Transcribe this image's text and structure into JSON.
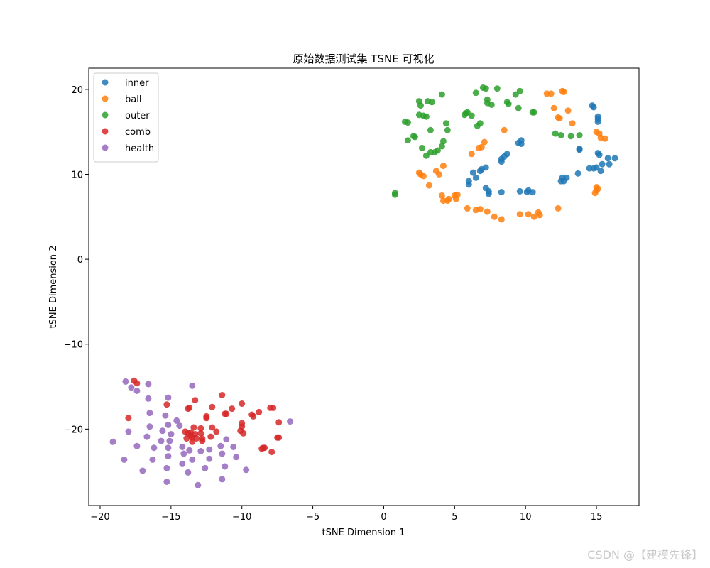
{
  "watermark": "CSDN @【建模先锋】",
  "chart_data": {
    "type": "scatter",
    "title": "原始数据测试集 TSNE 可视化",
    "xlabel": "tSNE Dimension 1",
    "ylabel": "tSNE Dimension 2",
    "xlim": [
      -20.8,
      18.0
    ],
    "ylim": [
      -29.0,
      22.5
    ],
    "xticks": [
      -20,
      -15,
      -10,
      -5,
      0,
      5,
      10,
      15
    ],
    "xtick_labels": [
      "−20",
      "−15",
      "−10",
      "−5",
      "0",
      "5",
      "10",
      "15"
    ],
    "yticks": [
      20,
      10,
      0,
      -10,
      -20
    ],
    "ytick_labels": [
      "20",
      "10",
      "0",
      "−10",
      "−20"
    ],
    "grid": false,
    "legend_position": "top-left",
    "series": [
      {
        "name": "inner",
        "color": "#1f77b4",
        "points": [
          [
            14.7,
            18.1
          ],
          [
            14.8,
            17.9
          ],
          [
            15.1,
            16.8
          ],
          [
            15.1,
            16.5
          ],
          [
            15.1,
            16.2
          ],
          [
            13.8,
            13.0
          ],
          [
            13.8,
            12.9
          ],
          [
            15.1,
            12.5
          ],
          [
            15.2,
            12.3
          ],
          [
            15.8,
            11.9
          ],
          [
            16.3,
            11.9
          ],
          [
            15.4,
            11.2
          ],
          [
            15.9,
            11.2
          ],
          [
            14.5,
            10.7
          ],
          [
            14.8,
            10.7
          ],
          [
            15.0,
            10.8
          ],
          [
            15.3,
            10.4
          ],
          [
            13.7,
            10.1
          ],
          [
            12.6,
            9.6
          ],
          [
            12.9,
            9.6
          ],
          [
            12.5,
            9.2
          ],
          [
            12.7,
            9.2
          ],
          [
            9.7,
            14.0
          ],
          [
            9.5,
            13.7
          ],
          [
            9.7,
            13.6
          ],
          [
            8.7,
            12.4
          ],
          [
            8.5,
            12.1
          ],
          [
            8.3,
            11.8
          ],
          [
            8.3,
            11.5
          ],
          [
            7.2,
            10.8
          ],
          [
            6.9,
            10.6
          ],
          [
            6.8,
            10.4
          ],
          [
            6.3,
            10.2
          ],
          [
            6.5,
            9.6
          ],
          [
            6.0,
            9.2
          ],
          [
            6.0,
            8.8
          ],
          [
            7.2,
            8.4
          ],
          [
            7.4,
            8.0
          ],
          [
            7.4,
            7.7
          ],
          [
            8.3,
            7.9
          ],
          [
            9.6,
            8.0
          ],
          [
            10.2,
            8.1
          ],
          [
            10.1,
            7.9
          ],
          [
            10.5,
            7.9
          ]
        ]
      },
      {
        "name": "ball",
        "color": "#ff7f0e",
        "points": [
          [
            11.5,
            19.5
          ],
          [
            11.8,
            19.5
          ],
          [
            12.6,
            19.8
          ],
          [
            12.7,
            19.7
          ],
          [
            12.0,
            17.8
          ],
          [
            13.0,
            17.5
          ],
          [
            12.3,
            16.7
          ],
          [
            12.4,
            16.6
          ],
          [
            13.3,
            16.0
          ],
          [
            15.0,
            15.0
          ],
          [
            15.2,
            14.8
          ],
          [
            15.3,
            14.3
          ],
          [
            15.6,
            14.2
          ],
          [
            8.5,
            15.2
          ],
          [
            7.1,
            13.8
          ],
          [
            6.7,
            13.1
          ],
          [
            6.9,
            13.2
          ],
          [
            6.2,
            12.4
          ],
          [
            4.2,
            11.0
          ],
          [
            3.7,
            10.4
          ],
          [
            3.9,
            10.0
          ],
          [
            2.5,
            10.2
          ],
          [
            2.6,
            10.0
          ],
          [
            2.8,
            9.8
          ],
          [
            3.2,
            8.7
          ],
          [
            15.0,
            8.5
          ],
          [
            15.1,
            8.3
          ],
          [
            15.0,
            8.1
          ],
          [
            14.9,
            7.8
          ],
          [
            5.2,
            7.6
          ],
          [
            5.0,
            7.5
          ],
          [
            4.1,
            7.5
          ],
          [
            4.6,
            7.1
          ],
          [
            4.2,
            6.9
          ],
          [
            4.5,
            6.9
          ],
          [
            5.1,
            7.1
          ],
          [
            5.9,
            6.0
          ],
          [
            6.5,
            5.8
          ],
          [
            6.8,
            5.9
          ],
          [
            7.3,
            5.6
          ],
          [
            7.8,
            5.0
          ],
          [
            8.3,
            4.7
          ],
          [
            9.6,
            5.3
          ],
          [
            10.2,
            5.3
          ],
          [
            10.6,
            5.0
          ],
          [
            10.9,
            5.5
          ],
          [
            11.0,
            5.2
          ],
          [
            12.3,
            6.0
          ]
        ]
      },
      {
        "name": "outer",
        "color": "#2ca02c",
        "points": [
          [
            7.0,
            20.2
          ],
          [
            7.2,
            20.1
          ],
          [
            8.0,
            20.1
          ],
          [
            9.6,
            19.8
          ],
          [
            9.3,
            19.4
          ],
          [
            6.5,
            19.6
          ],
          [
            4.1,
            19.4
          ],
          [
            2.5,
            18.6
          ],
          [
            2.6,
            18.1
          ],
          [
            3.1,
            18.6
          ],
          [
            3.4,
            18.5
          ],
          [
            7.3,
            18.8
          ],
          [
            7.3,
            18.4
          ],
          [
            7.6,
            18.2
          ],
          [
            8.7,
            18.5
          ],
          [
            8.8,
            18.3
          ],
          [
            9.5,
            17.8
          ],
          [
            10.5,
            17.3
          ],
          [
            10.6,
            17.3
          ],
          [
            5.8,
            17.2
          ],
          [
            5.7,
            17.0
          ],
          [
            5.9,
            17.3
          ],
          [
            6.2,
            16.9
          ],
          [
            2.5,
            17.0
          ],
          [
            2.8,
            16.9
          ],
          [
            3.0,
            16.8
          ],
          [
            1.5,
            16.2
          ],
          [
            1.7,
            16.1
          ],
          [
            4.4,
            16.0
          ],
          [
            6.8,
            16.0
          ],
          [
            6.6,
            15.7
          ],
          [
            3.3,
            15.2
          ],
          [
            4.5,
            15.2
          ],
          [
            12.1,
            14.8
          ],
          [
            12.5,
            14.6
          ],
          [
            13.2,
            14.5
          ],
          [
            13.8,
            14.6
          ],
          [
            2.1,
            14.5
          ],
          [
            2.2,
            14.4
          ],
          [
            1.7,
            14.0
          ],
          [
            4.2,
            13.9
          ],
          [
            4.1,
            13.3
          ],
          [
            3.8,
            12.8
          ],
          [
            3.6,
            12.6
          ],
          [
            3.3,
            12.6
          ],
          [
            3.0,
            12.2
          ],
          [
            2.7,
            13.1
          ],
          [
            0.8,
            7.6
          ],
          [
            0.8,
            7.8
          ]
        ]
      },
      {
        "name": "comb",
        "color": "#d62728",
        "points": [
          [
            -17.6,
            -14.3
          ],
          [
            -17.4,
            -14.6
          ],
          [
            -11.4,
            -16.0
          ],
          [
            -15.3,
            -17.1
          ],
          [
            -13.3,
            -16.6
          ],
          [
            -10.0,
            -17.0
          ],
          [
            -12.1,
            -17.4
          ],
          [
            -13.8,
            -17.6
          ],
          [
            -13.7,
            -17.5
          ],
          [
            -10.7,
            -17.6
          ],
          [
            -8.0,
            -17.5
          ],
          [
            -7.8,
            -17.5
          ],
          [
            -18.0,
            -18.7
          ],
          [
            -11.2,
            -18.2
          ],
          [
            -11.1,
            -18.2
          ],
          [
            -9.3,
            -18.3
          ],
          [
            -9.2,
            -18.5
          ],
          [
            -8.8,
            -18.0
          ],
          [
            -12.5,
            -18.5
          ],
          [
            -12.5,
            -18.7
          ],
          [
            -7.4,
            -19.2
          ],
          [
            -10.0,
            -19.3
          ],
          [
            -10.0,
            -19.7
          ],
          [
            -10.1,
            -20.2
          ],
          [
            -9.9,
            -20.5
          ],
          [
            -12.1,
            -19.8
          ],
          [
            -13.4,
            -19.8
          ],
          [
            -12.9,
            -19.9
          ],
          [
            -11.8,
            -20.3
          ],
          [
            -12.9,
            -20.5
          ],
          [
            -13.8,
            -20.5
          ],
          [
            -13.6,
            -20.4
          ],
          [
            -13.3,
            -20.6
          ],
          [
            -13.6,
            -20.8
          ],
          [
            -13.5,
            -21.0
          ],
          [
            -13.9,
            -21.1
          ],
          [
            -13.2,
            -21.1
          ],
          [
            -12.2,
            -20.9
          ],
          [
            -12.8,
            -21.1
          ],
          [
            -12.8,
            -21.4
          ],
          [
            -13.5,
            -21.5
          ],
          [
            -7.5,
            -21.0
          ],
          [
            -7.4,
            -21.0
          ],
          [
            -8.5,
            -22.2
          ],
          [
            -8.4,
            -22.2
          ],
          [
            -8.6,
            -22.3
          ],
          [
            -7.9,
            -22.7
          ],
          [
            -14.0,
            -20.3
          ]
        ]
      },
      {
        "name": "health",
        "color": "#9467bd",
        "points": [
          [
            -18.2,
            -14.4
          ],
          [
            -17.8,
            -15.1
          ],
          [
            -17.4,
            -15.5
          ],
          [
            -16.6,
            -14.7
          ],
          [
            -13.5,
            -14.9
          ],
          [
            -16.6,
            -16.4
          ],
          [
            -15.2,
            -16.3
          ],
          [
            -16.5,
            -18.1
          ],
          [
            -15.4,
            -18.4
          ],
          [
            -14.6,
            -19.0
          ],
          [
            -18.0,
            -20.3
          ],
          [
            -16.5,
            -19.7
          ],
          [
            -15.2,
            -19.5
          ],
          [
            -14.4,
            -19.6
          ],
          [
            -15.6,
            -20.2
          ],
          [
            -15.0,
            -20.6
          ],
          [
            -16.7,
            -20.9
          ],
          [
            -19.1,
            -21.5
          ],
          [
            -17.4,
            -22.0
          ],
          [
            -15.7,
            -21.4
          ],
          [
            -15.1,
            -21.4
          ],
          [
            -16.2,
            -22.2
          ],
          [
            -15.2,
            -22.2
          ],
          [
            -14.2,
            -22.1
          ],
          [
            -13.7,
            -22.5
          ],
          [
            -12.9,
            -22.6
          ],
          [
            -12.3,
            -22.4
          ],
          [
            -11.5,
            -22.0
          ],
          [
            -11.1,
            -21.2
          ],
          [
            -10.6,
            -22.1
          ],
          [
            -14.1,
            -22.9
          ],
          [
            -13.5,
            -23.6
          ],
          [
            -14.2,
            -24.1
          ],
          [
            -12.3,
            -23.5
          ],
          [
            -11.4,
            -22.9
          ],
          [
            -10.4,
            -23.3
          ],
          [
            -16.3,
            -23.6
          ],
          [
            -15.2,
            -23.2
          ],
          [
            -18.3,
            -23.6
          ],
          [
            -17.0,
            -24.9
          ],
          [
            -15.3,
            -24.6
          ],
          [
            -13.8,
            -25.1
          ],
          [
            -12.6,
            -24.6
          ],
          [
            -11.2,
            -24.4
          ],
          [
            -9.7,
            -24.8
          ],
          [
            -15.3,
            -26.2
          ],
          [
            -11.4,
            -25.9
          ],
          [
            -13.1,
            -26.6
          ],
          [
            -6.6,
            -19.1
          ]
        ]
      }
    ]
  }
}
